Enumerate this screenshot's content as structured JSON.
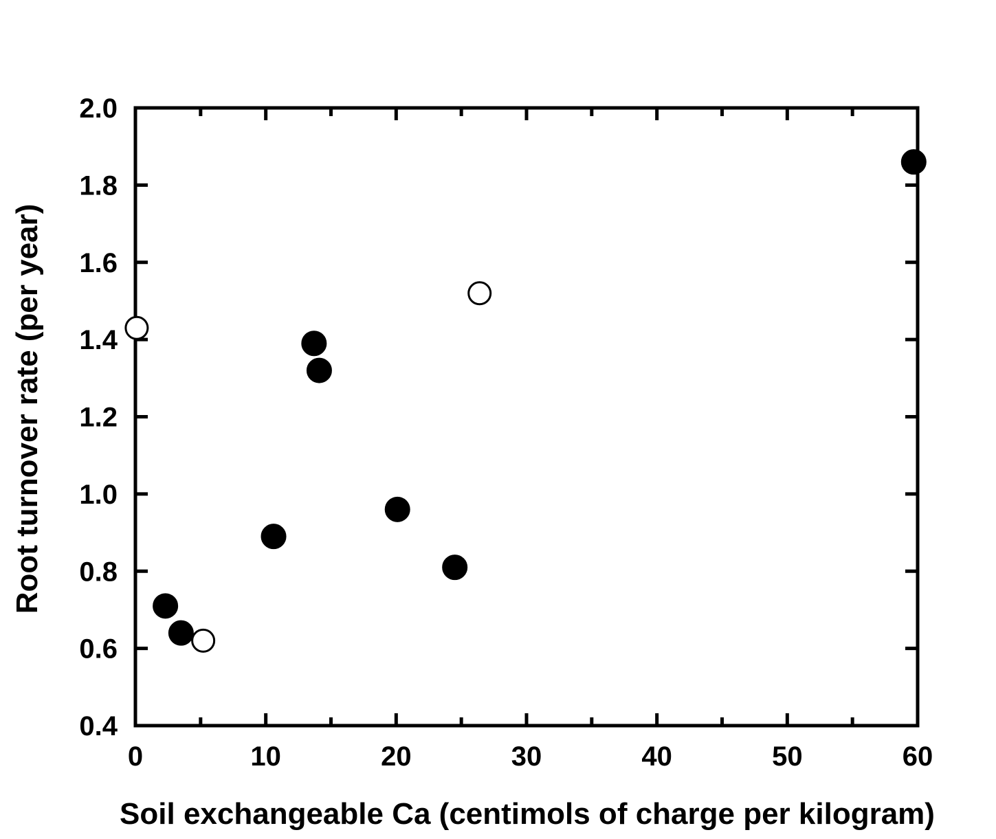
{
  "chart_data": {
    "type": "scatter",
    "title": "",
    "xlabel": "Soil exchangeable Ca (centimols of charge per kilogram)",
    "ylabel": "Root turnover rate (per year)",
    "xlim": [
      0,
      60
    ],
    "ylim": [
      0.4,
      2.0
    ],
    "x_ticks": [
      0,
      10,
      20,
      30,
      40,
      50,
      60
    ],
    "x_tick_labels": [
      "0",
      "10",
      "20",
      "30",
      "40",
      "50",
      "60"
    ],
    "x_minor_ticks": [
      5,
      15,
      25,
      35,
      45,
      55
    ],
    "y_ticks": [
      0.4,
      0.6,
      0.8,
      1.0,
      1.2,
      1.4,
      1.6,
      1.8,
      2.0
    ],
    "y_tick_labels": [
      "0.4",
      "0.6",
      "0.8",
      "1.0",
      "1.2",
      "1.4",
      "1.6",
      "1.8",
      "2.0"
    ],
    "grid": false,
    "legend": "none",
    "series": [
      {
        "marker": "filled-circle",
        "color": "#000000",
        "points": [
          {
            "x": 2.3,
            "y": 0.71
          },
          {
            "x": 3.5,
            "y": 0.64
          },
          {
            "x": 10.6,
            "y": 0.89
          },
          {
            "x": 13.7,
            "y": 1.39
          },
          {
            "x": 14.1,
            "y": 1.32
          },
          {
            "x": 20.1,
            "y": 0.96
          },
          {
            "x": 24.5,
            "y": 0.81
          },
          {
            "x": 59.7,
            "y": 1.86
          }
        ]
      },
      {
        "marker": "open-circle",
        "color": "#000000",
        "points": [
          {
            "x": 0.1,
            "y": 1.43
          },
          {
            "x": 5.2,
            "y": 0.62
          },
          {
            "x": 26.4,
            "y": 1.52
          }
        ]
      }
    ]
  }
}
